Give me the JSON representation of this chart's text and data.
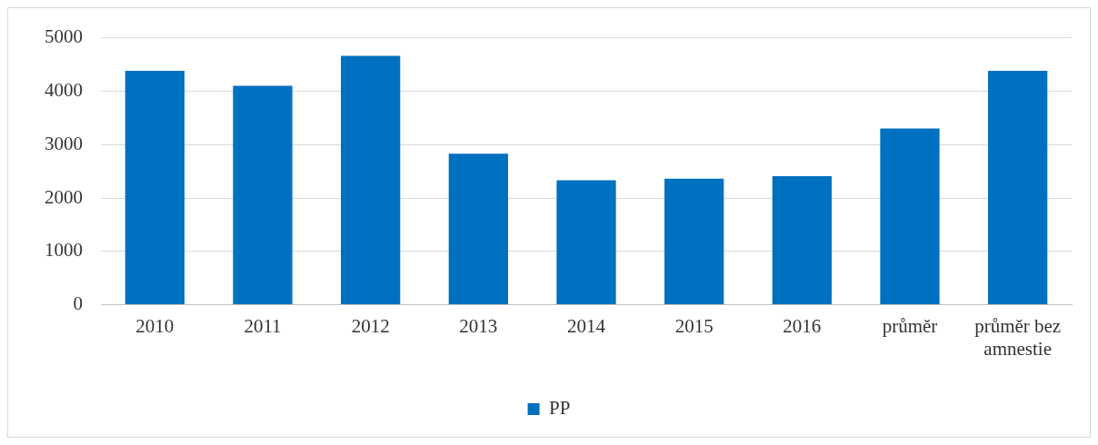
{
  "chart_data": {
    "type": "bar",
    "categories": [
      "2010",
      "2011",
      "2012",
      "2013",
      "2014",
      "2015",
      "2016",
      "průměr",
      "průměr bez amnestie"
    ],
    "series": [
      {
        "name": "PP",
        "color": "#0070c0",
        "values": [
          4380,
          4100,
          4660,
          2830,
          2330,
          2360,
          2410,
          3300,
          4380
        ]
      }
    ],
    "ylim": [
      0,
      5000
    ],
    "yticks": [
      0,
      1000,
      2000,
      3000,
      4000,
      5000
    ],
    "grid": "y",
    "legend": "bottom"
  }
}
